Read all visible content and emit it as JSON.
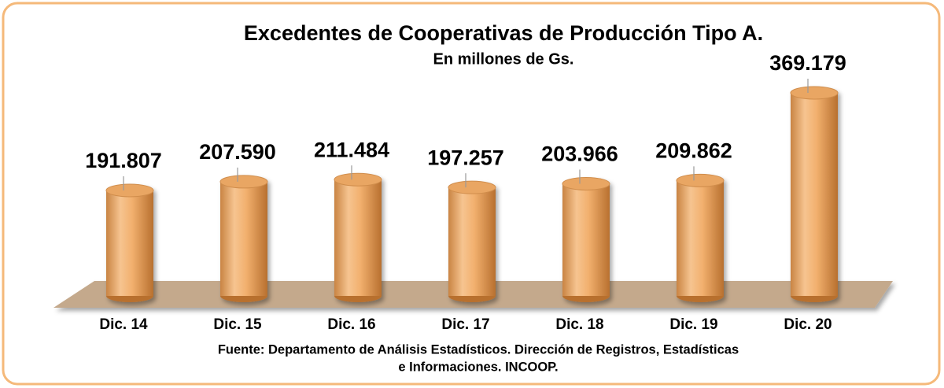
{
  "chart_data": {
    "type": "bar3d",
    "title": "Excedentes de Cooperativas de Producción Tipo A.",
    "subtitle": "En millones de Gs.",
    "categories": [
      "Dic. 14",
      "Dic. 15",
      "Dic. 16",
      "Dic. 17",
      "Dic. 18",
      "Dic. 19",
      "Dic. 20"
    ],
    "values": [
      191807,
      207590,
      211484,
      197257,
      203966,
      209862,
      369179
    ],
    "value_labels": [
      "191.807",
      "207.590",
      "211.484",
      "197.257",
      "203.966",
      "209.862",
      "369.179"
    ],
    "color": "#f2b06e",
    "source": [
      "Fuente: Departamento de Análisis Estadísticos. Dirección de Registros, Estadísticas",
      "e Informaciones. INCOOP."
    ]
  }
}
